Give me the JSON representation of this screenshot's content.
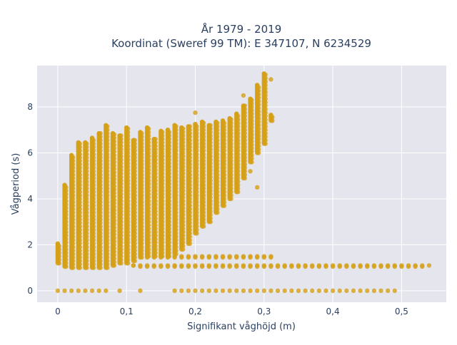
{
  "chart_data": {
    "type": "scatter",
    "title": "År 1979 - 2019",
    "subtitle": "Koordinat (Sweref 99 TM): E 347107, N 6234529",
    "xlabel": "Signifikant våghöjd (m)",
    "ylabel": "Vågperiod (s)",
    "xlim": [
      -0.03,
      0.565
    ],
    "ylim": [
      -0.5,
      9.8
    ],
    "x_ticks": [
      0,
      0.1,
      0.2,
      0.3,
      0.4,
      0.5
    ],
    "x_tick_labels": [
      "0",
      "0,1",
      "0,2",
      "0,3",
      "0,4",
      "0,5"
    ],
    "y_ticks": [
      0,
      2,
      4,
      6,
      8
    ],
    "y_tick_labels": [
      "0",
      "2",
      "4",
      "6",
      "8"
    ],
    "grid": true,
    "marker_color": "#d4a017",
    "plot_bg": "#e5e5ee",
    "x_step": 0.01,
    "columns": [
      {
        "x": 0.0,
        "y_min": 1.2,
        "y_max": 2.05
      },
      {
        "x": 0.01,
        "y_min": 1.05,
        "y_max": 4.6
      },
      {
        "x": 0.02,
        "y_min": 1.0,
        "y_max": 5.9
      },
      {
        "x": 0.03,
        "y_min": 1.0,
        "y_max": 6.45
      },
      {
        "x": 0.04,
        "y_min": 1.0,
        "y_max": 6.45
      },
      {
        "x": 0.05,
        "y_min": 1.0,
        "y_max": 6.65
      },
      {
        "x": 0.06,
        "y_min": 1.0,
        "y_max": 6.85
      },
      {
        "x": 0.07,
        "y_min": 1.0,
        "y_max": 7.2
      },
      {
        "x": 0.08,
        "y_min": 1.1,
        "y_max": 6.85
      },
      {
        "x": 0.09,
        "y_min": 1.2,
        "y_max": 6.75
      },
      {
        "x": 0.1,
        "y_min": 1.2,
        "y_max": 7.1
      },
      {
        "x": 0.11,
        "y_min": 1.3,
        "y_max": 6.55
      },
      {
        "x": 0.12,
        "y_min": 1.45,
        "y_max": 6.9
      },
      {
        "x": 0.13,
        "y_min": 1.5,
        "y_max": 7.1
      },
      {
        "x": 0.14,
        "y_min": 1.5,
        "y_max": 6.6
      },
      {
        "x": 0.15,
        "y_min": 1.5,
        "y_max": 6.95
      },
      {
        "x": 0.16,
        "y_min": 1.5,
        "y_max": 7.0
      },
      {
        "x": 0.17,
        "y_min": 1.6,
        "y_max": 7.2
      },
      {
        "x": 0.18,
        "y_min": 1.8,
        "y_max": 7.1
      },
      {
        "x": 0.19,
        "y_min": 2.05,
        "y_max": 7.15
      },
      {
        "x": 0.2,
        "y_min": 2.5,
        "y_max": 7.25
      },
      {
        "x": 0.21,
        "y_min": 2.8,
        "y_max": 7.35
      },
      {
        "x": 0.22,
        "y_min": 3.0,
        "y_max": 7.2
      },
      {
        "x": 0.23,
        "y_min": 3.4,
        "y_max": 7.35
      },
      {
        "x": 0.24,
        "y_min": 3.7,
        "y_max": 7.4
      },
      {
        "x": 0.25,
        "y_min": 4.0,
        "y_max": 7.5
      },
      {
        "x": 0.26,
        "y_min": 4.3,
        "y_max": 7.7
      },
      {
        "x": 0.27,
        "y_min": 4.9,
        "y_max": 8.05
      },
      {
        "x": 0.28,
        "y_min": 5.6,
        "y_max": 8.35
      },
      {
        "x": 0.29,
        "y_min": 6.0,
        "y_max": 8.95
      },
      {
        "x": 0.3,
        "y_min": 6.4,
        "y_max": 9.45
      },
      {
        "x": 0.31,
        "y_min": 7.4,
        "y_max": 7.65
      }
    ],
    "outliers": [
      {
        "x": 0.11,
        "y": 1.1
      },
      {
        "x": 0.2,
        "y": 7.75
      },
      {
        "x": 0.27,
        "y": 8.5
      },
      {
        "x": 0.31,
        "y": 9.2
      },
      {
        "x": 0.28,
        "y": 5.2
      },
      {
        "x": 0.29,
        "y": 4.5
      },
      {
        "x": 0.25,
        "y": 4.3
      },
      {
        "x": 0.0,
        "y": 1.55
      }
    ],
    "bands": [
      {
        "y": 1.5,
        "x_min": 0.13,
        "x_max": 0.31
      },
      {
        "y": 1.45,
        "x_min": 0.13,
        "x_max": 0.31
      },
      {
        "y": 1.1,
        "x_min": 0.11,
        "x_max": 0.54
      },
      {
        "y": 1.05,
        "x_min": 0.12,
        "x_max": 0.53
      }
    ],
    "zero_points": [
      0.0,
      0.01,
      0.02,
      0.03,
      0.04,
      0.05,
      0.06,
      0.07,
      0.09,
      0.12,
      0.17,
      0.18,
      0.19,
      0.2,
      0.21,
      0.22,
      0.23,
      0.24,
      0.25,
      0.26,
      0.27,
      0.28,
      0.29,
      0.3,
      0.31,
      0.32,
      0.33,
      0.34,
      0.35,
      0.36,
      0.37,
      0.38,
      0.39,
      0.4,
      0.41,
      0.42,
      0.43,
      0.44,
      0.45,
      0.46,
      0.47,
      0.48,
      0.49
    ]
  }
}
